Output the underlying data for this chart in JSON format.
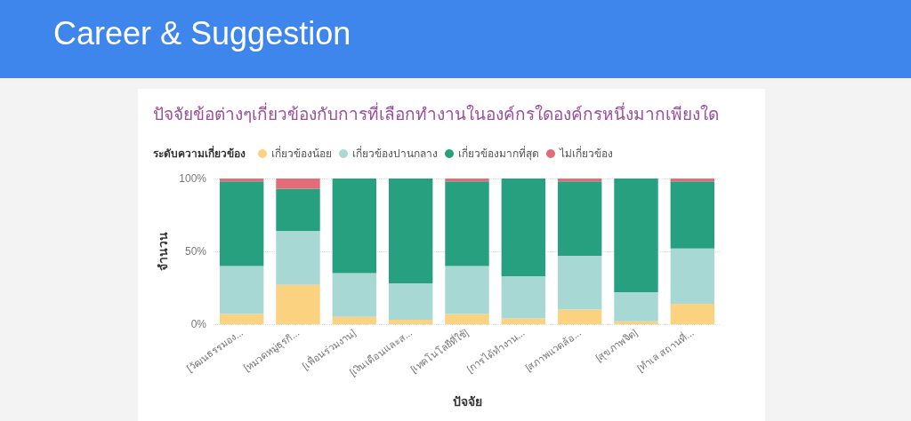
{
  "chart_data": {
    "type": "bar",
    "title": "Career & Suggestion",
    "subtitle": "ปัจจัยข้อต่างๆเกี่ยวข้องกับการที่เลือกทำงานในองค์กรใดองค์กรหนึ่งมากเพียงใด",
    "legend_title": "ระดับความเกี่ยวข้อง",
    "xlabel": "ปัจจัย",
    "ylabel": "จำนวน",
    "categories": [
      "[วัฒนธรรมอง...",
      "[หมวดหมู่ธุรกิ...",
      "[เพื่อนร่วมงาน]",
      "[เงินเดือนและส...",
      "[เทคโนโลยีที่ใช้]",
      "[การได้ทำงาน...",
      "[สภาพแวดล้อ...",
      "[สุขภาพจิต]",
      "[ทำเล สถานที่..."
    ],
    "series": [
      {
        "name": "เกี่ยวข้องน้อย",
        "color": "#fbd280",
        "values": [
          7,
          27,
          5,
          3,
          7,
          4,
          10,
          2,
          14
        ]
      },
      {
        "name": "เกี่ยวข้องปานกลาง",
        "color": "#a8d8d4",
        "values": [
          33,
          37,
          30,
          25,
          33,
          29,
          37,
          20,
          38
        ]
      },
      {
        "name": "เกี่ยวข้องมากที่สุด",
        "color": "#26a07e",
        "values": [
          58,
          29,
          65,
          72,
          58,
          67,
          51,
          78,
          46
        ]
      },
      {
        "name": "ไม่เกี่ยวข้อง",
        "color": "#e46c78",
        "values": [
          2,
          7,
          0,
          0,
          2,
          0,
          2,
          0,
          2
        ]
      }
    ],
    "stacked": true,
    "ylim": [
      0,
      100
    ],
    "yticks": [
      {
        "value": 0,
        "label": "0%"
      },
      {
        "value": 50,
        "label": "50%"
      },
      {
        "value": 100,
        "label": "100%"
      }
    ],
    "grid": "y",
    "legend": "top left"
  }
}
